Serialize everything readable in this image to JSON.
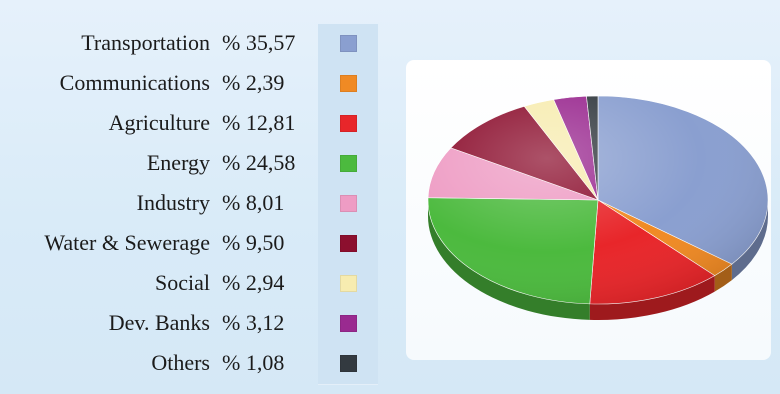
{
  "chart_data": {
    "type": "pie",
    "title": "",
    "categories": [
      "Transportation",
      "Communications",
      "Agriculture",
      "Energy",
      "Industry",
      "Water & Sewerage",
      "Social",
      "Dev. Banks",
      "Others"
    ],
    "values": [
      35.57,
      2.39,
      12.81,
      24.58,
      8.01,
      9.5,
      2.94,
      3.12,
      1.08
    ],
    "value_labels": [
      "% 35,57",
      "% 2,39",
      "% 12,81",
      "% 24,58",
      "% 8,01",
      "% 9,50",
      "% 2,94",
      "% 3,12",
      "% 1,08"
    ],
    "colors": [
      "#8a9fd0",
      "#f08a24",
      "#e8262a",
      "#4cba3e",
      "#ee9cc4",
      "#8c0f2e",
      "#f7ecb0",
      "#9a2a90",
      "#333a40"
    ],
    "legend": {
      "position": "left"
    },
    "style": "3d-tilted"
  }
}
